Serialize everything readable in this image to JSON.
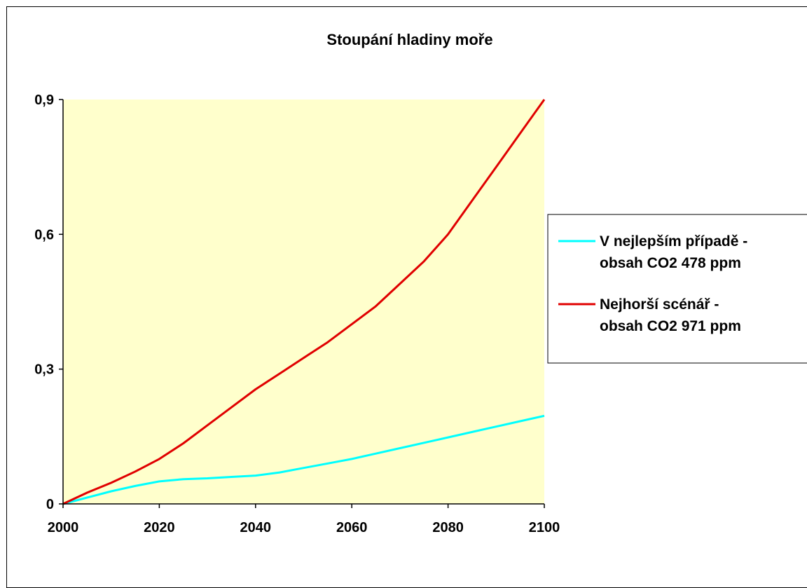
{
  "chart_data": {
    "type": "line",
    "title": "Stoupání hladiny moře",
    "xlabel": "",
    "ylabel": "",
    "xlim": [
      2000,
      2100
    ],
    "ylim": [
      0,
      0.9
    ],
    "x_ticks": [
      "2000",
      "2020",
      "2040",
      "2060",
      "2080",
      "2100"
    ],
    "y_ticks": [
      "0",
      "0,3",
      "0,6",
      "0,9"
    ],
    "plot_background": "#ffffcc",
    "grid": false,
    "legend_position": "right",
    "series": [
      {
        "name": "V nejlepším případě - obsah CO2 478 ppm",
        "legend_lines": [
          "V nejlepším případě -",
          "obsah CO2 478 ppm"
        ],
        "color": "#00ffff",
        "x": [
          2000,
          2005,
          2010,
          2015,
          2020,
          2025,
          2030,
          2035,
          2040,
          2045,
          2050,
          2055,
          2060,
          2065,
          2070,
          2075,
          2080,
          2085,
          2090,
          2095,
          2100
        ],
        "y": [
          0,
          0.014,
          0.028,
          0.04,
          0.05,
          0.055,
          0.057,
          0.06,
          0.063,
          0.07,
          0.08,
          0.09,
          0.1,
          0.112,
          0.124,
          0.136,
          0.148,
          0.16,
          0.172,
          0.184,
          0.196
        ]
      },
      {
        "name": "Nejhorší scénář - obsah CO2 971 ppm",
        "legend_lines": [
          "Nejhorší scénář -",
          "obsah CO2  971 ppm"
        ],
        "color": "#e00000",
        "x": [
          2000,
          2005,
          2010,
          2015,
          2020,
          2025,
          2030,
          2035,
          2040,
          2045,
          2050,
          2055,
          2060,
          2065,
          2070,
          2075,
          2080,
          2085,
          2090,
          2095,
          2100
        ],
        "y": [
          0,
          0.025,
          0.047,
          0.072,
          0.1,
          0.135,
          0.175,
          0.215,
          0.255,
          0.29,
          0.325,
          0.36,
          0.4,
          0.44,
          0.49,
          0.54,
          0.6,
          0.675,
          0.75,
          0.825,
          0.9
        ]
      }
    ]
  }
}
